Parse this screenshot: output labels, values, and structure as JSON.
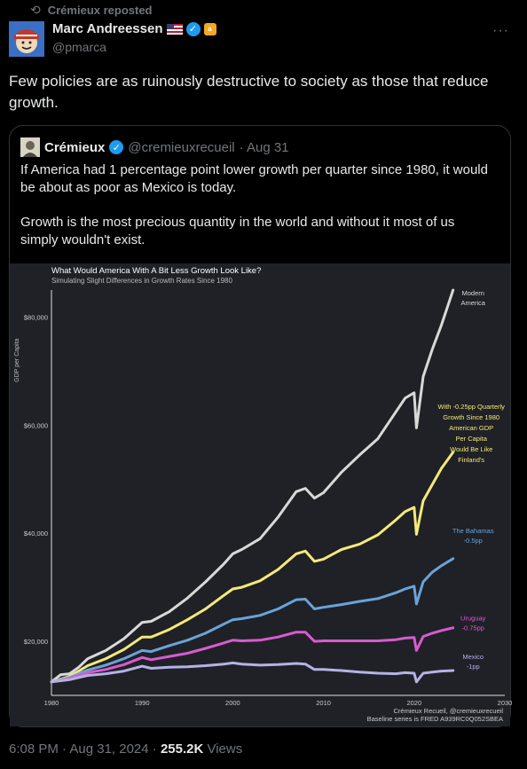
{
  "repost": {
    "label": "Crémieux reposted"
  },
  "author": {
    "name": "Marc Andreessen",
    "handle": "@pmarca"
  },
  "tweet": {
    "text": "Few policies are as ruinously destructive to society as those that reduce growth."
  },
  "quote": {
    "name": "Crémieux",
    "handle": "@cremieuxrecueil",
    "date": "· Aug 31",
    "para1": "If America had 1 percentage point lower growth per quarter since 1980, it would be about as poor as Mexico is today.",
    "para2": "Growth is the most precious quantity in the world and without it most of us simply wouldn't exist."
  },
  "footer": {
    "time": "6:08 PM · Aug 31, 2024 · ",
    "views_count": "255.2K",
    "views_label": " Views"
  },
  "colors": {
    "modern": "#d9d9d9",
    "finland": "#f5e97a",
    "bahamas": "#6aa3d8",
    "uruguay": "#d85bd0",
    "mexico": "#b4b2e6",
    "bg": "#1f2126",
    "verified": "#1d9bf0"
  },
  "chart_data": {
    "type": "line",
    "title": "What Would America With A Bit Less Growth Look Like?",
    "subtitle": "Simulating Slight Differences in Growth Rates Since 1980",
    "xlabel": "",
    "ylabel": "GDP per Capita",
    "xlim": [
      1980,
      2030
    ],
    "ylim": [
      10000,
      85000
    ],
    "xticks": [
      "1980",
      "1990",
      "2000",
      "2010",
      "2020",
      "2030"
    ],
    "xtick_values": [
      1980,
      1990,
      2000,
      2010,
      2020,
      2030
    ],
    "yticks": [
      "$20,000",
      "$40,000",
      "$60,000",
      "$80,000"
    ],
    "ytick_values": [
      20000,
      40000,
      60000,
      80000
    ],
    "caption_1": "Crémieux Recueil, @cremieuxrecueil",
    "caption_2": "Baseline series is FRED A939RC0Q052SBEA",
    "series": [
      {
        "key": "modern",
        "label_lines": [
          "Modern",
          "America"
        ],
        "x": [
          1980,
          1981,
          1982,
          1983,
          1984,
          1986,
          1988,
          1990,
          1991,
          1993,
          1995,
          1997,
          1999,
          2000,
          2001,
          2003,
          2005,
          2007,
          2008,
          2009,
          2010,
          2012,
          2014,
          2016,
          2018,
          2019,
          2020,
          2020.25,
          2021,
          2022,
          2023,
          2024.3
        ],
        "y": [
          12500,
          13800,
          14000,
          15200,
          16800,
          18300,
          20500,
          23500,
          23700,
          25500,
          28000,
          31000,
          34300,
          36200,
          37000,
          39000,
          43000,
          47700,
          48300,
          46500,
          47500,
          51300,
          54500,
          57500,
          62500,
          65000,
          66000,
          59500,
          69000,
          74000,
          78500,
          85000
        ]
      },
      {
        "key": "finland",
        "label_lines": [
          "With -0.25pp Quarterly",
          "Growth Since 1980",
          "American GDP",
          "Per Capita",
          "Would Be Like",
          "Finland's"
        ],
        "x": [
          1980,
          1982,
          1984,
          1986,
          1988,
          1990,
          1991,
          1993,
          1995,
          1997,
          1999,
          2000,
          2001,
          2003,
          2005,
          2007,
          2008,
          2009,
          2010,
          2012,
          2014,
          2016,
          2018,
          2019,
          2020,
          2020.25,
          2021,
          2022,
          2023,
          2024.3
        ],
        "y": [
          12500,
          13500,
          15500,
          16800,
          18500,
          20800,
          20800,
          22200,
          24000,
          26000,
          28500,
          29700,
          30000,
          31200,
          33300,
          36200,
          36700,
          34800,
          35200,
          37000,
          38000,
          39700,
          42500,
          44000,
          44800,
          39800,
          46000,
          49000,
          52000,
          55000
        ]
      },
      {
        "key": "bahamas",
        "label_lines": [
          "The Bahamas",
          "-0.5pp"
        ],
        "x": [
          1980,
          1982,
          1984,
          1986,
          1988,
          1990,
          1991,
          1993,
          1995,
          1997,
          1999,
          2000,
          2001,
          2003,
          2005,
          2007,
          2008,
          2009,
          2010,
          2012,
          2014,
          2016,
          2018,
          2019,
          2020,
          2020.25,
          2021,
          2022,
          2023,
          2024.3
        ],
        "y": [
          12500,
          13300,
          14700,
          15600,
          16800,
          18300,
          18100,
          19200,
          20200,
          21500,
          23200,
          24000,
          24200,
          24800,
          26000,
          27700,
          27800,
          26000,
          26300,
          26800,
          27400,
          27900,
          29000,
          29700,
          30200,
          26900,
          31000,
          32800,
          34000,
          35300
        ]
      },
      {
        "key": "uruguay",
        "label_lines": [
          "Uruguay",
          "-0.75pp"
        ],
        "x": [
          1980,
          1982,
          1984,
          1986,
          1988,
          1990,
          1991,
          1993,
          1995,
          1997,
          1999,
          2000,
          2001,
          2003,
          2005,
          2007,
          2008,
          2009,
          2010,
          2012,
          2014,
          2016,
          2018,
          2019,
          2020,
          2020.25,
          2021,
          2022,
          2023,
          2024.3
        ],
        "y": [
          12500,
          13100,
          14200,
          14800,
          15700,
          17000,
          16600,
          17200,
          17800,
          18700,
          19700,
          20200,
          20100,
          20200,
          20800,
          21700,
          21700,
          20000,
          20100,
          20100,
          20100,
          20100,
          20300,
          20600,
          20700,
          18300,
          20900,
          21500,
          22000,
          22500
        ]
      },
      {
        "key": "mexico",
        "label_lines": [
          "Mexico",
          "-1pp"
        ],
        "x": [
          1980,
          1982,
          1984,
          1986,
          1988,
          1990,
          1991,
          1993,
          1995,
          1997,
          1999,
          2000,
          2001,
          2003,
          2005,
          2007,
          2008,
          2009,
          2010,
          2012,
          2014,
          2016,
          2018,
          2019,
          2020,
          2020.25,
          2021,
          2022,
          2023,
          2024.3
        ],
        "y": [
          12500,
          12900,
          13700,
          14000,
          14500,
          15400,
          15000,
          15200,
          15300,
          15500,
          15800,
          16000,
          15800,
          15600,
          15700,
          15900,
          15800,
          14800,
          14800,
          14600,
          14300,
          14100,
          14000,
          14200,
          14100,
          12500,
          14100,
          14300,
          14500,
          14600
        ]
      }
    ]
  }
}
